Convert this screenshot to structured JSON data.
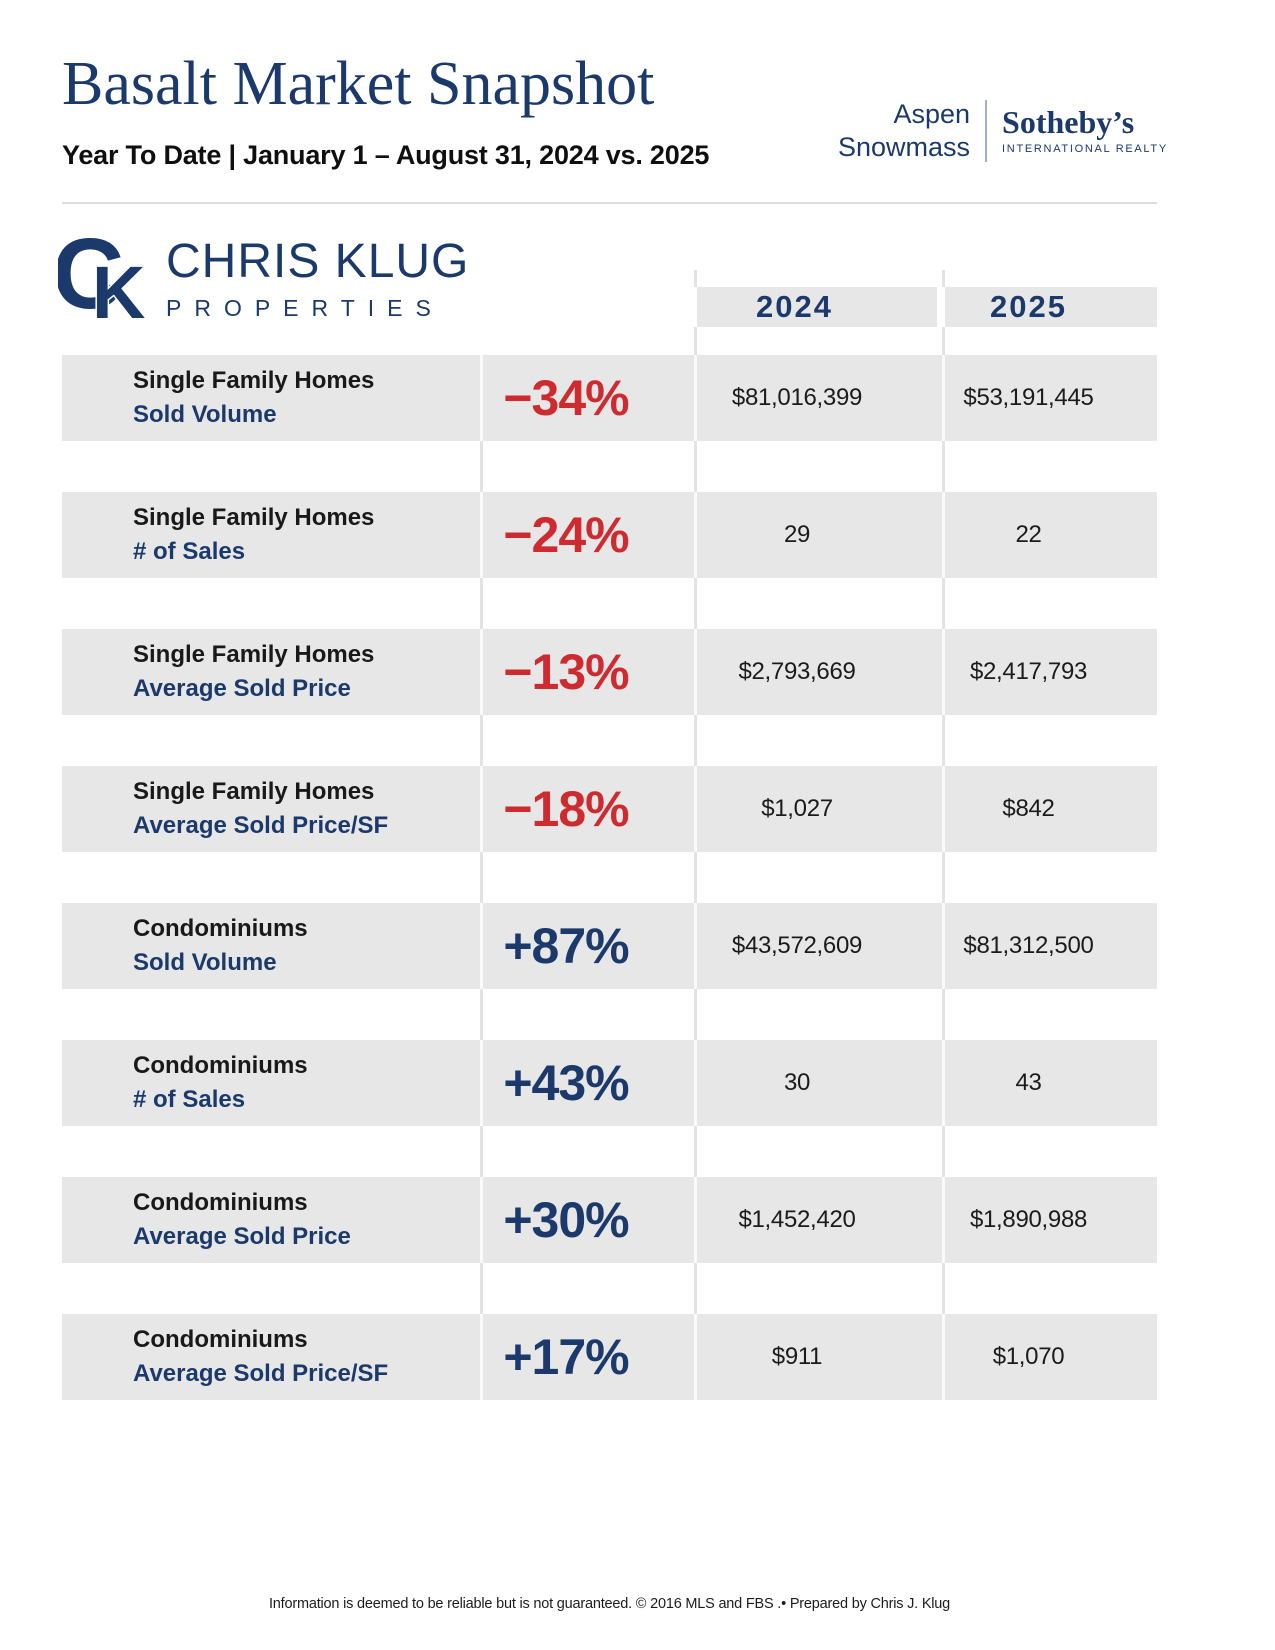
{
  "header": {
    "title": "Basalt Market Snapshot",
    "subtitle": "Year To Date | January 1 – August 31, 2024 vs. 2025",
    "brand": {
      "line1": "Aspen",
      "line2": "Snowmass",
      "name": "Sotheby’s",
      "sub": "INTERNATIONAL REALTY"
    }
  },
  "logo": {
    "monogram": {
      "c": "C",
      "k": "K"
    },
    "name": "CHRIS KLUG",
    "sub": "PROPERTIES"
  },
  "table": {
    "columns": [
      "2024",
      "2025"
    ],
    "rows": [
      {
        "category": "Single Family Homes",
        "metric": "Sold Volume",
        "change": "−34%",
        "direction": "down",
        "v2024": "$81,016,399",
        "v2025": "$53,191,445"
      },
      {
        "category": "Single Family Homes",
        "metric": "# of Sales",
        "change": "−24%",
        "direction": "down",
        "v2024": "29",
        "v2025": "22"
      },
      {
        "category": "Single Family Homes",
        "metric": "Average Sold Price",
        "change": "−13%",
        "direction": "down",
        "v2024": "$2,793,669",
        "v2025": "$2,417,793"
      },
      {
        "category": "Single Family Homes",
        "metric": "Average Sold Price/SF",
        "change": "−18%",
        "direction": "down",
        "v2024": "$1,027",
        "v2025": "$842"
      },
      {
        "category": "Condominiums",
        "metric": "Sold Volume",
        "change": "+87%",
        "direction": "up",
        "v2024": "$43,572,609",
        "v2025": "$81,312,500"
      },
      {
        "category": "Condominiums",
        "metric": "# of Sales",
        "change": "+43%",
        "direction": "up",
        "v2024": "30",
        "v2025": "43"
      },
      {
        "category": "Condominiums",
        "metric": "Average Sold Price",
        "change": "+30%",
        "direction": "up",
        "v2024": "$1,452,420",
        "v2025": "$1,890,988"
      },
      {
        "category": "Condominiums",
        "metric": "Average Sold Price/SF",
        "change": "+17%",
        "direction": "up",
        "v2024": "$911",
        "v2025": "$1,070"
      }
    ]
  },
  "footer": {
    "disclaimer": "Information is deemed to be reliable but is not guaranteed. © 2016 MLS and FBS .• Prepared by Chris J. Klug"
  },
  "colors": {
    "navy": "#1b3a6b",
    "red": "#ce2b31",
    "band_gray": "#e7e7e7",
    "gap_line": "#e3e3e3"
  }
}
